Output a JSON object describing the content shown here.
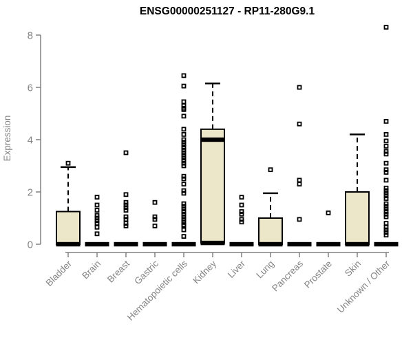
{
  "chart_data": {
    "type": "boxplot",
    "title": "ENSG00000251127 - RP11-280G9.1",
    "xlabel": "",
    "ylabel": "Expression",
    "ylim": [
      0,
      8.4
    ],
    "yticks": [
      0,
      2,
      4,
      6,
      8
    ],
    "grid": false,
    "legend": "none",
    "categories": [
      "Bladder",
      "Brain",
      "Breast",
      "Gastric",
      "Hematopoietic cells",
      "Kidney",
      "Liver",
      "Lung",
      "Pancreas",
      "Prostate",
      "Skin",
      "Unknown / Other"
    ],
    "series": [
      {
        "label": "Bladder",
        "q1": 0,
        "median": 0,
        "q3": 1.25,
        "whisker_low": 0,
        "whisker_high": 2.95,
        "outliers": [
          3.1
        ]
      },
      {
        "label": "Brain",
        "q1": 0,
        "median": 0,
        "q3": 0,
        "whisker_low": 0,
        "whisker_high": 0,
        "outliers": [
          1.8,
          1.5,
          1.3,
          1.1,
          1.0,
          0.9,
          0.8,
          0.65,
          0.4
        ]
      },
      {
        "label": "Breast",
        "q1": 0,
        "median": 0,
        "q3": 0,
        "whisker_low": 0,
        "whisker_high": 0,
        "outliers": [
          3.5,
          1.9,
          1.6,
          1.5,
          1.4,
          1.3,
          1.05,
          0.95,
          0.8,
          0.7
        ]
      },
      {
        "label": "Gastric",
        "q1": 0,
        "median": 0,
        "q3": 0,
        "whisker_low": 0,
        "whisker_high": 0,
        "outliers": [
          1.6,
          1.05,
          0.95,
          0.7
        ]
      },
      {
        "label": "Hematopoietic cells",
        "q1": 0,
        "median": 0,
        "q3": 0,
        "whisker_low": 0,
        "whisker_high": 0,
        "outliers": [
          6.45,
          6.05,
          5.45,
          5.3,
          5.2,
          5.15,
          4.9,
          4.4,
          4.2,
          4.0,
          3.9,
          3.8,
          3.7,
          3.6,
          3.5,
          3.4,
          3.3,
          3.2,
          3.1,
          3.0,
          2.6,
          2.5,
          2.3,
          2.05,
          1.95,
          1.55,
          1.45,
          1.35,
          1.25,
          1.15,
          1.05,
          0.95,
          0.85,
          0.75,
          0.7,
          0.55,
          0.3
        ]
      },
      {
        "label": "Kidney",
        "q1": 0.05,
        "median": 4.0,
        "q3": 4.4,
        "whisker_low": 0.05,
        "whisker_high": 6.15,
        "outliers": []
      },
      {
        "label": "Liver",
        "q1": 0,
        "median": 0,
        "q3": 0,
        "whisker_low": 0,
        "whisker_high": 0,
        "outliers": [
          1.8,
          1.5,
          1.25,
          1.15,
          0.95,
          0.85
        ]
      },
      {
        "label": "Lung",
        "q1": 0,
        "median": 0,
        "q3": 1.0,
        "whisker_low": 0,
        "whisker_high": 1.95,
        "outliers": [
          2.85
        ]
      },
      {
        "label": "Pancreas",
        "q1": 0,
        "median": 0,
        "q3": 0,
        "whisker_low": 0,
        "whisker_high": 0,
        "outliers": [
          6.0,
          4.6,
          2.45,
          2.3,
          0.95
        ]
      },
      {
        "label": "Prostate",
        "q1": 0,
        "median": 0,
        "q3": 0,
        "whisker_low": 0,
        "whisker_high": 0,
        "outliers": [
          1.2
        ]
      },
      {
        "label": "Skin",
        "q1": 0,
        "median": 0,
        "q3": 2.0,
        "whisker_low": 0,
        "whisker_high": 4.2,
        "outliers": []
      },
      {
        "label": "Unknown / Other",
        "q1": 0,
        "median": 0,
        "q3": 0,
        "whisker_low": 0,
        "whisker_high": 0,
        "outliers": [
          8.3,
          4.7,
          4.2,
          3.95,
          3.75,
          3.55,
          3.45,
          3.1,
          2.85,
          2.75,
          2.45,
          2.15,
          2.05,
          1.95,
          1.85,
          1.75,
          1.55,
          1.45,
          1.35,
          1.25,
          1.15,
          1.05,
          0.8,
          0.65,
          0.55,
          0.45,
          0.35
        ]
      }
    ],
    "colors": {
      "box_fill": "#EDE7CA",
      "box_border": "#000000",
      "median": "#000000",
      "whisker": "#000000",
      "outlier": "#000000",
      "axis_line": "#808080",
      "tick_text": "#848484",
      "title_text": "#000000",
      "background": "#ffffff"
    }
  }
}
